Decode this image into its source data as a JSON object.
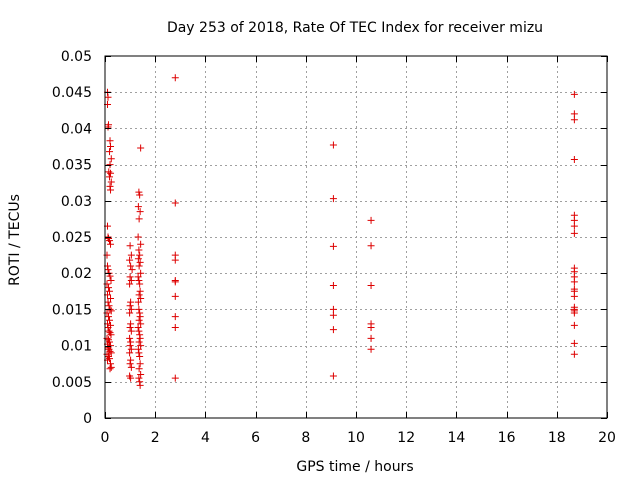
{
  "chart_data": {
    "type": "scatter",
    "title": "Day 253 of 2018, Rate Of TEC Index for receiver mizu",
    "xlabel": "GPS time / hours",
    "ylabel": "ROTI / TECUs",
    "xlim": [
      0,
      20
    ],
    "ylim": [
      0,
      0.05
    ],
    "grid": true,
    "marker": "plus",
    "xticks": [
      0,
      2,
      4,
      6,
      8,
      10,
      12,
      14,
      16,
      18,
      20
    ],
    "xtick_labels": [
      "0",
      "2",
      "4",
      "6",
      "8",
      "10",
      "12",
      "14",
      "16",
      "18",
      "20"
    ],
    "yticks": [
      0,
      0.005,
      0.01,
      0.015,
      0.02,
      0.025,
      0.03,
      0.035,
      0.04,
      0.045,
      0.05
    ],
    "ytick_labels": [
      "0",
      "0.005",
      "0.01",
      "0.015",
      "0.02",
      "0.025",
      "0.03",
      "0.035",
      "0.04",
      "0.045",
      "0.05"
    ],
    "series": [
      {
        "name": "mizu",
        "color": "#dd0000",
        "points": [
          [
            0.1,
            0.045
          ],
          [
            0.12,
            0.0443
          ],
          [
            0.1,
            0.0433
          ],
          [
            0.14,
            0.0405
          ],
          [
            0.12,
            0.0402
          ],
          [
            0.2,
            0.0383
          ],
          [
            0.22,
            0.0375
          ],
          [
            0.18,
            0.0368
          ],
          [
            0.25,
            0.0358
          ],
          [
            0.2,
            0.035
          ],
          [
            0.15,
            0.034
          ],
          [
            0.22,
            0.0338
          ],
          [
            0.18,
            0.0333
          ],
          [
            0.25,
            0.0326
          ],
          [
            0.2,
            0.032
          ],
          [
            0.22,
            0.0315
          ],
          [
            0.1,
            0.0265
          ],
          [
            0.12,
            0.025
          ],
          [
            0.14,
            0.0248
          ],
          [
            0.18,
            0.0245
          ],
          [
            0.22,
            0.024
          ],
          [
            0.08,
            0.0225
          ],
          [
            0.1,
            0.021
          ],
          [
            0.12,
            0.0205
          ],
          [
            0.16,
            0.02
          ],
          [
            0.2,
            0.0196
          ],
          [
            0.24,
            0.019
          ],
          [
            0.08,
            0.0185
          ],
          [
            0.14,
            0.018
          ],
          [
            0.18,
            0.0175
          ],
          [
            0.1,
            0.017
          ],
          [
            0.22,
            0.0165
          ],
          [
            0.12,
            0.016
          ],
          [
            0.16,
            0.0155
          ],
          [
            0.2,
            0.015
          ],
          [
            0.25,
            0.0148
          ],
          [
            0.08,
            0.0145
          ],
          [
            0.14,
            0.014
          ],
          [
            0.18,
            0.0135
          ],
          [
            0.1,
            0.013
          ],
          [
            0.22,
            0.0128
          ],
          [
            0.12,
            0.0125
          ],
          [
            0.16,
            0.012
          ],
          [
            0.2,
            0.0118
          ],
          [
            0.24,
            0.0115
          ],
          [
            0.08,
            0.011
          ],
          [
            0.14,
            0.0108
          ],
          [
            0.18,
            0.0105
          ],
          [
            0.1,
            0.0102
          ],
          [
            0.22,
            0.01
          ],
          [
            0.12,
            0.0097
          ],
          [
            0.16,
            0.0095
          ],
          [
            0.2,
            0.0092
          ],
          [
            0.25,
            0.009
          ],
          [
            0.08,
            0.0088
          ],
          [
            0.14,
            0.0085
          ],
          [
            0.18,
            0.0082
          ],
          [
            0.1,
            0.008
          ],
          [
            0.22,
            0.0075
          ],
          [
            0.25,
            0.007
          ],
          [
            0.2,
            0.0068
          ],
          [
            1.0,
            0.0238
          ],
          [
            1.05,
            0.0225
          ],
          [
            0.98,
            0.0218
          ],
          [
            1.02,
            0.021
          ],
          [
            1.08,
            0.0205
          ],
          [
            1.0,
            0.0195
          ],
          [
            1.05,
            0.019
          ],
          [
            0.98,
            0.0185
          ],
          [
            1.02,
            0.016
          ],
          [
            1.0,
            0.0155
          ],
          [
            1.05,
            0.015
          ],
          [
            0.98,
            0.0145
          ],
          [
            1.02,
            0.013
          ],
          [
            1.0,
            0.0125
          ],
          [
            1.05,
            0.012
          ],
          [
            0.98,
            0.011
          ],
          [
            1.02,
            0.0105
          ],
          [
            1.0,
            0.01
          ],
          [
            1.05,
            0.0095
          ],
          [
            0.98,
            0.009
          ],
          [
            1.02,
            0.008
          ],
          [
            1.0,
            0.0075
          ],
          [
            1.05,
            0.007
          ],
          [
            0.98,
            0.0058
          ],
          [
            1.02,
            0.0055
          ],
          [
            1.42,
            0.0373
          ],
          [
            1.35,
            0.0312
          ],
          [
            1.38,
            0.0308
          ],
          [
            1.33,
            0.0292
          ],
          [
            1.4,
            0.0285
          ],
          [
            1.36,
            0.0275
          ],
          [
            1.32,
            0.025
          ],
          [
            1.42,
            0.024
          ],
          [
            1.35,
            0.0232
          ],
          [
            1.38,
            0.0225
          ],
          [
            1.33,
            0.022
          ],
          [
            1.4,
            0.0215
          ],
          [
            1.36,
            0.021
          ],
          [
            1.42,
            0.02
          ],
          [
            1.32,
            0.0195
          ],
          [
            1.35,
            0.019
          ],
          [
            1.38,
            0.0185
          ],
          [
            1.4,
            0.0175
          ],
          [
            1.36,
            0.017
          ],
          [
            1.42,
            0.0165
          ],
          [
            1.33,
            0.016
          ],
          [
            1.35,
            0.015
          ],
          [
            1.38,
            0.0145
          ],
          [
            1.4,
            0.014
          ],
          [
            1.36,
            0.0135
          ],
          [
            1.42,
            0.013
          ],
          [
            1.32,
            0.0125
          ],
          [
            1.35,
            0.012
          ],
          [
            1.38,
            0.0115
          ],
          [
            1.4,
            0.011
          ],
          [
            1.36,
            0.0105
          ],
          [
            1.42,
            0.01
          ],
          [
            1.33,
            0.0095
          ],
          [
            1.35,
            0.009
          ],
          [
            1.38,
            0.0085
          ],
          [
            1.4,
            0.0075
          ],
          [
            1.36,
            0.0068
          ],
          [
            1.42,
            0.006
          ],
          [
            1.35,
            0.0055
          ],
          [
            1.38,
            0.005
          ],
          [
            1.4,
            0.0045
          ],
          [
            2.8,
            0.047
          ],
          [
            2.8,
            0.0297
          ],
          [
            2.8,
            0.0225
          ],
          [
            2.8,
            0.0218
          ],
          [
            2.8,
            0.019
          ],
          [
            2.8,
            0.0188
          ],
          [
            2.8,
            0.0168
          ],
          [
            2.8,
            0.014
          ],
          [
            2.8,
            0.0125
          ],
          [
            2.8,
            0.0055
          ],
          [
            9.1,
            0.0377
          ],
          [
            9.1,
            0.0303
          ],
          [
            9.1,
            0.0237
          ],
          [
            9.1,
            0.0183
          ],
          [
            9.1,
            0.015
          ],
          [
            9.1,
            0.0142
          ],
          [
            9.1,
            0.0122
          ],
          [
            9.1,
            0.0058
          ],
          [
            10.6,
            0.0273
          ],
          [
            10.6,
            0.0238
          ],
          [
            10.6,
            0.0183
          ],
          [
            10.6,
            0.013
          ],
          [
            10.6,
            0.0125
          ],
          [
            10.6,
            0.011
          ],
          [
            10.6,
            0.0095
          ],
          [
            18.7,
            0.0447
          ],
          [
            18.7,
            0.042
          ],
          [
            18.7,
            0.0412
          ],
          [
            18.7,
            0.0357
          ],
          [
            18.7,
            0.028
          ],
          [
            18.7,
            0.0273
          ],
          [
            18.7,
            0.0265
          ],
          [
            18.7,
            0.0255
          ],
          [
            18.7,
            0.0207
          ],
          [
            18.7,
            0.0202
          ],
          [
            18.7,
            0.0195
          ],
          [
            18.7,
            0.0188
          ],
          [
            18.7,
            0.0178
          ],
          [
            18.7,
            0.0175
          ],
          [
            18.7,
            0.0168
          ],
          [
            18.7,
            0.0153
          ],
          [
            18.7,
            0.015
          ],
          [
            18.7,
            0.0148
          ],
          [
            18.7,
            0.0145
          ],
          [
            18.7,
            0.0128
          ],
          [
            18.7,
            0.0103
          ],
          [
            18.7,
            0.0088
          ]
        ]
      }
    ]
  }
}
